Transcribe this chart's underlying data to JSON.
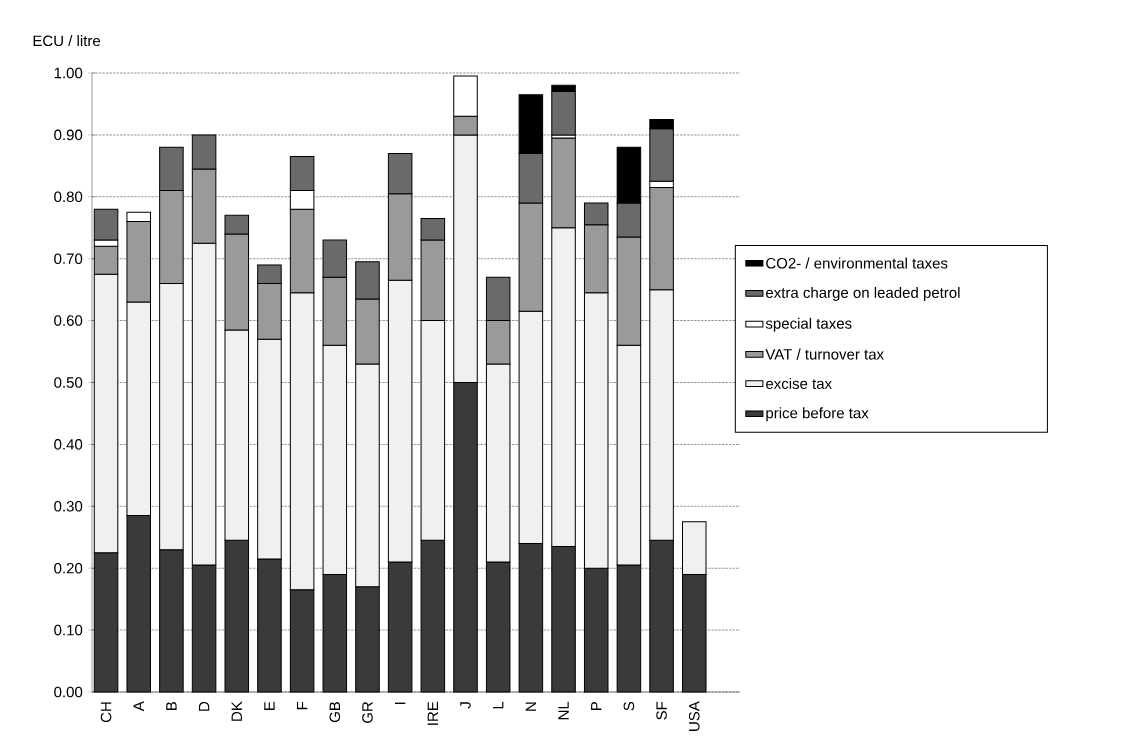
{
  "chart_data": {
    "type": "bar",
    "stacked": true,
    "ylabel": "ECU / litre",
    "categories": [
      "CH",
      "A",
      "B",
      "D",
      "DK",
      "E",
      "F",
      "GB",
      "GR",
      "I",
      "IRE",
      "J",
      "L",
      "N",
      "NL",
      "P",
      "S",
      "SF",
      "USA"
    ],
    "series": [
      {
        "name": "price before tax",
        "color": "#3a3a3a",
        "values": [
          0.225,
          0.285,
          0.23,
          0.205,
          0.245,
          0.215,
          0.165,
          0.19,
          0.17,
          0.21,
          0.245,
          0.5,
          0.21,
          0.24,
          0.235,
          0.2,
          0.205,
          0.245,
          0.19
        ]
      },
      {
        "name": "excise tax",
        "color": "#f0f0f0",
        "values": [
          0.45,
          0.345,
          0.43,
          0.52,
          0.34,
          0.355,
          0.48,
          0.37,
          0.36,
          0.455,
          0.355,
          0.4,
          0.32,
          0.375,
          0.515,
          0.445,
          0.355,
          0.405,
          0.085
        ]
      },
      {
        "name": "VAT / turnover tax",
        "color": "#9a9a9a",
        "values": [
          0.045,
          0.13,
          0.15,
          0.12,
          0.155,
          0.09,
          0.135,
          0.11,
          0.105,
          0.14,
          0.13,
          0.03,
          0.07,
          0.175,
          0.145,
          0.11,
          0.175,
          0.165,
          null
        ]
      },
      {
        "name": "special taxes",
        "color": "#ffffff",
        "values": [
          0.01,
          0.015,
          null,
          null,
          null,
          null,
          0.03,
          null,
          null,
          null,
          null,
          0.065,
          null,
          null,
          0.005,
          null,
          null,
          0.01,
          null
        ]
      },
      {
        "name": "extra charge on leaded petrol",
        "color": "#6a6a6a",
        "values": [
          0.05,
          null,
          0.07,
          0.055,
          0.03,
          0.03,
          0.055,
          0.06,
          0.06,
          0.065,
          0.035,
          null,
          0.07,
          0.08,
          0.07,
          0.035,
          0.055,
          0.085,
          null
        ]
      },
      {
        "name": "CO2- / environmental taxes",
        "color": "#000000",
        "values": [
          null,
          null,
          null,
          null,
          null,
          null,
          null,
          null,
          null,
          null,
          null,
          null,
          null,
          0.095,
          0.01,
          null,
          0.09,
          0.015,
          null
        ]
      }
    ],
    "ylim": [
      0,
      1
    ],
    "yticks": [
      {
        "value": 0,
        "label": "0.00"
      },
      {
        "value": 0.1,
        "label": "0.10"
      },
      {
        "value": 0.2,
        "label": "0.20"
      },
      {
        "value": 0.3,
        "label": "0.30"
      },
      {
        "value": 0.4,
        "label": "0.40"
      },
      {
        "value": 0.5,
        "label": "0.50"
      },
      {
        "value": 0.6,
        "label": "0.60"
      },
      {
        "value": 0.7,
        "label": "0.70"
      },
      {
        "value": 0.8,
        "label": "0.80"
      },
      {
        "value": 0.9,
        "label": "0.90"
      },
      {
        "value": 1,
        "label": "1.00"
      }
    ],
    "grid": "y",
    "legend": "right"
  }
}
